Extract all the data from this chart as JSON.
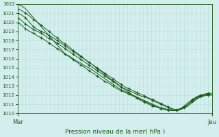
{
  "title": "Pression niveau de la mer( hPa )",
  "xlabel_left": "Mar",
  "xlabel_right": "Jeu",
  "ylim": [
    1010,
    1022
  ],
  "bg_color": "#d4eeee",
  "grid_color": "#b8ddd8",
  "line_color": "#1a5c1a",
  "num_steps": 50,
  "lines": [
    {
      "y": [
        1022.0,
        1021.8,
        1021.5,
        1021.0,
        1020.5,
        1020.0,
        1019.5,
        1019.0,
        1018.5,
        1018.0,
        1017.5,
        1017.0,
        1016.5,
        1016.3,
        1016.0,
        1015.7,
        1015.5,
        1015.2,
        1015.0,
        1014.7,
        1014.4,
        1014.1,
        1013.8,
        1013.5,
        1013.2,
        1012.9,
        1012.6,
        1012.4,
        1012.2,
        1012.0,
        1011.8,
        1011.6,
        1011.4,
        1011.2,
        1011.0,
        1010.8,
        1010.6,
        1010.5,
        1010.4,
        1010.3,
        1010.3,
        1010.4,
        1010.6,
        1010.8,
        1011.2,
        1011.5,
        1011.8,
        1012.0,
        1012.1,
        1012.0
      ],
      "has_markers": false
    },
    {
      "y": [
        1021.0,
        1020.8,
        1020.5,
        1020.0,
        1019.5,
        1019.2,
        1019.0,
        1018.8,
        1018.5,
        1018.3,
        1018.0,
        1017.7,
        1017.4,
        1017.1,
        1016.8,
        1016.5,
        1016.2,
        1015.9,
        1015.6,
        1015.3,
        1015.0,
        1014.7,
        1014.4,
        1014.1,
        1013.8,
        1013.5,
        1013.2,
        1012.9,
        1012.7,
        1012.5,
        1012.3,
        1012.1,
        1011.9,
        1011.7,
        1011.5,
        1011.3,
        1011.1,
        1010.9,
        1010.7,
        1010.5,
        1010.4,
        1010.5,
        1010.7,
        1011.0,
        1011.4,
        1011.7,
        1011.9,
        1012.0,
        1012.1,
        1012.0
      ],
      "has_markers": true
    },
    {
      "y": [
        1020.5,
        1020.2,
        1019.8,
        1019.5,
        1019.2,
        1019.0,
        1018.8,
        1018.5,
        1018.2,
        1018.0,
        1017.7,
        1017.4,
        1017.1,
        1016.8,
        1016.5,
        1016.2,
        1015.9,
        1015.6,
        1015.3,
        1015.0,
        1014.7,
        1014.4,
        1014.1,
        1013.8,
        1013.5,
        1013.2,
        1012.9,
        1012.7,
        1012.5,
        1012.3,
        1012.1,
        1011.9,
        1011.8,
        1011.6,
        1011.4,
        1011.2,
        1011.0,
        1010.8,
        1010.6,
        1010.4,
        1010.3,
        1010.4,
        1010.6,
        1011.0,
        1011.4,
        1011.7,
        1011.9,
        1012.0,
        1012.1,
        1012.0
      ],
      "has_markers": true
    },
    {
      "y": [
        1020.0,
        1019.7,
        1019.3,
        1019.0,
        1018.8,
        1018.5,
        1018.3,
        1018.0,
        1017.7,
        1017.4,
        1017.1,
        1016.8,
        1016.5,
        1016.2,
        1015.9,
        1015.6,
        1015.3,
        1015.0,
        1014.7,
        1014.4,
        1014.1,
        1013.8,
        1013.5,
        1013.3,
        1013.0,
        1012.7,
        1012.5,
        1012.3,
        1012.1,
        1011.9,
        1011.7,
        1011.5,
        1011.3,
        1011.1,
        1010.9,
        1010.7,
        1010.5,
        1010.4,
        1010.3,
        1010.3,
        1010.3,
        1010.5,
        1010.7,
        1011.0,
        1011.3,
        1011.6,
        1011.8,
        1011.9,
        1012.0,
        1012.0
      ],
      "has_markers": true
    },
    {
      "y": [
        1021.5,
        1021.3,
        1021.0,
        1020.7,
        1020.3,
        1020.0,
        1019.7,
        1019.3,
        1019.0,
        1018.6,
        1018.3,
        1017.9,
        1017.6,
        1017.3,
        1016.9,
        1016.6,
        1016.3,
        1015.9,
        1015.6,
        1015.3,
        1014.9,
        1014.6,
        1014.3,
        1013.9,
        1013.6,
        1013.3,
        1012.9,
        1012.6,
        1012.3,
        1012.0,
        1011.7,
        1011.4,
        1011.2,
        1011.0,
        1010.8,
        1010.7,
        1010.6,
        1010.5,
        1010.4,
        1010.3,
        1010.3,
        1010.5,
        1010.8,
        1011.2,
        1011.5,
        1011.8,
        1012.0,
        1012.1,
        1012.2,
        1012.2
      ],
      "has_markers": true
    }
  ]
}
